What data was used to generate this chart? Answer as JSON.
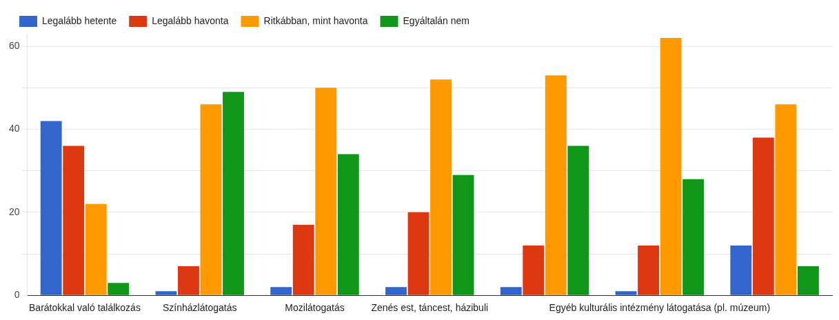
{
  "chart_data": {
    "type": "bar",
    "categories": [
      "Barátokkal való találkozás",
      "Színházlátogatás",
      "Mozilátogatás",
      "Zenés est, táncest, házibuli",
      null,
      "Egyéb kulturális intézmény látogatása (pl. múzeum)",
      null
    ],
    "series": [
      {
        "name": "Legalább hetente",
        "color": "#3366cc",
        "values": [
          42,
          1,
          2,
          2,
          2,
          1,
          12
        ]
      },
      {
        "name": "Legalább havonta",
        "color": "#dc3912",
        "values": [
          36,
          7,
          17,
          20,
          12,
          12,
          38
        ]
      },
      {
        "name": "Ritkábban, mint havonta",
        "color": "#ff9900",
        "values": [
          22,
          46,
          50,
          52,
          53,
          62,
          46
        ]
      },
      {
        "name": "Egyáltalán nem",
        "color": "#109618",
        "values": [
          3,
          49,
          34,
          29,
          36,
          28,
          7
        ]
      }
    ],
    "ylim": [
      0,
      63
    ],
    "yticks": [
      0,
      {
        "value": 10,
        "label": null
      },
      20,
      {
        "value": 30,
        "label": null
      },
      40,
      {
        "value": 50,
        "label": null
      },
      60
    ],
    "grid": true,
    "legend": "top left"
  }
}
